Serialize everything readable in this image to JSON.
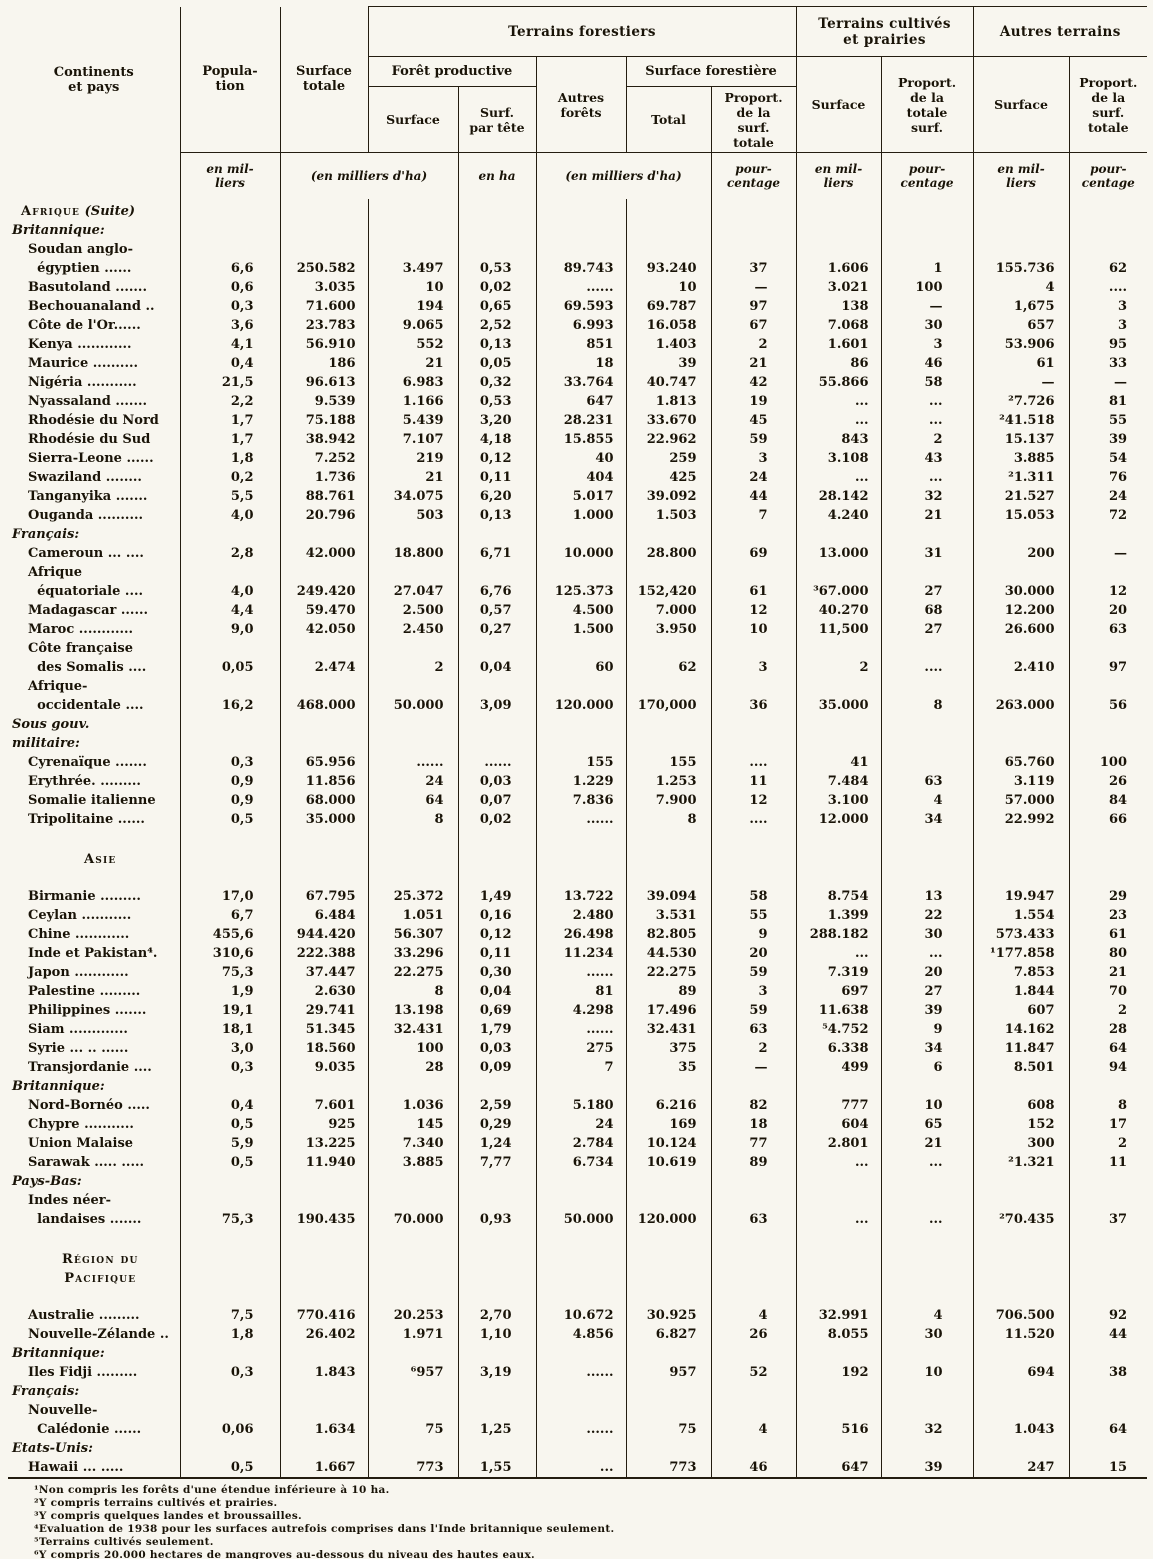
{
  "document": {
    "colors": {
      "paper": "#f8f6ef",
      "ink": "#191307"
    }
  },
  "header": {
    "col_continents": "Continents\net pays",
    "col_population": "Popula-\ntion",
    "col_surface_totale": "Surface\ntotale",
    "group_terrains_forestiers": "Terrains forestiers",
    "group_terrains_cultives": "Terrains cultivés\net prairies",
    "group_autres_terrains": "Autres terrains",
    "sub_foret_productive": "Forêt productive",
    "sub_surface_forestiere": "Surface forestière",
    "col_surface_fp": "Surface",
    "col_surf_par_tete": "Surf.\npar tête",
    "col_autres_forets": "Autres\nforêts",
    "col_total": "Total",
    "col_proport_surf_totale_1": "Proport.\nde la\nsurf.\ntotale",
    "col_surface_tc": "Surface",
    "col_proport_totale_surf": "Proport.\nde la\ntotale\nsurf.",
    "col_surface_at": "Surface",
    "col_proport_surf_totale_2": "Proport.\nde la\nsurf.\ntotale",
    "units": {
      "population": "en mil-\nliers",
      "milliers_ha_1": "(en milliers d'ha)",
      "en_ha": "en ha",
      "milliers_ha_2": "(en milliers d'ha)",
      "pourcentage_1": "pour-\ncentage",
      "en_milliers_1": "en mil-\nliers",
      "pourcentage_2": "pour-\ncentage",
      "en_milliers_2": "en mil-\nliers",
      "pourcentage_3": "pour-\ncentage"
    }
  },
  "table": {
    "columns": [
      "population",
      "surface-totale",
      "surface-productive",
      "surface-par-tete",
      "autres-forets",
      "total-forestiere",
      "proportion-forestiere",
      "surface-cultivee",
      "proportion-cultivee",
      "surface-autres-terrains",
      "proportion-autres-terrains"
    ],
    "rows": [
      {
        "t": "section",
        "label": "Afrique",
        "suffix": "(Suite)",
        "align": "left"
      },
      {
        "t": "group",
        "label": "Britannique:"
      },
      {
        "t": "d",
        "label": "Soudan anglo-\n  égyptien ......",
        "cells": [
          "6,6",
          "250.582",
          "3.497",
          "0,53",
          "89.743",
          "93.240",
          "37",
          "1.606",
          "1",
          "155.736",
          "62"
        ]
      },
      {
        "t": "d",
        "label": "Basutoland .......",
        "cells": [
          "0,6",
          "3.035",
          "10",
          "0,02",
          "......",
          "10",
          "—",
          "3.021",
          "100",
          "4",
          "...."
        ]
      },
      {
        "t": "d",
        "label": "Bechouanaland ..",
        "cells": [
          "0,3",
          "71.600",
          "194",
          "0,65",
          "69.593",
          "69.787",
          "97",
          "138",
          "—",
          "1,675",
          "3"
        ]
      },
      {
        "t": "d",
        "label": "Côte de l'Or......",
        "cells": [
          "3,6",
          "23.783",
          "9.065",
          "2,52",
          "6.993",
          "16.058",
          "67",
          "7.068",
          "30",
          "657",
          "3"
        ]
      },
      {
        "t": "d",
        "label": "Kenya ............",
        "cells": [
          "4,1",
          "56.910",
          "552",
          "0,13",
          "851",
          "1.403",
          "2",
          "1.601",
          "3",
          "53.906",
          "95"
        ]
      },
      {
        "t": "d",
        "label": "Maurice ..........",
        "cells": [
          "0,4",
          "186",
          "21",
          "0,05",
          "18",
          "39",
          "21",
          "86",
          "46",
          "61",
          "33"
        ]
      },
      {
        "t": "d",
        "label": "Nigéria ...........",
        "cells": [
          "21,5",
          "96.613",
          "6.983",
          "0,32",
          "33.764",
          "40.747",
          "42",
          "55.866",
          "58",
          "—",
          "—"
        ]
      },
      {
        "t": "d",
        "label": "Nyassaland .......",
        "cells": [
          "2,2",
          "9.539",
          "1.166",
          "0,53",
          "647",
          "1.813",
          "19",
          "...",
          "...",
          "²7.726",
          "81"
        ]
      },
      {
        "t": "d",
        "label": "Rhodésie du Nord",
        "cells": [
          "1,7",
          "75.188",
          "5.439",
          "3,20",
          "28.231",
          "33.670",
          "45",
          "...",
          "...",
          "²41.518",
          "55"
        ]
      },
      {
        "t": "d",
        "label": "Rhodésie du Sud",
        "cells": [
          "1,7",
          "38.942",
          "7.107",
          "4,18",
          "15.855",
          "22.962",
          "59",
          "843",
          "2",
          "15.137",
          "39"
        ]
      },
      {
        "t": "d",
        "label": "Sierra-Leone ......",
        "cells": [
          "1,8",
          "7.252",
          "219",
          "0,12",
          "40",
          "259",
          "3",
          "3.108",
          "43",
          "3.885",
          "54"
        ]
      },
      {
        "t": "d",
        "label": "Swaziland ........",
        "cells": [
          "0,2",
          "1.736",
          "21",
          "0,11",
          "404",
          "425",
          "24",
          "...",
          "...",
          "²1.311",
          "76"
        ]
      },
      {
        "t": "d",
        "label": "Tanganyika .......",
        "cells": [
          "5,5",
          "88.761",
          "34.075",
          "6,20",
          "5.017",
          "39.092",
          "44",
          "28.142",
          "32",
          "21.527",
          "24"
        ]
      },
      {
        "t": "d",
        "label": "Ouganda ..........",
        "cells": [
          "4,0",
          "20.796",
          "503",
          "0,13",
          "1.000",
          "1.503",
          "7",
          "4.240",
          "21",
          "15.053",
          "72"
        ]
      },
      {
        "t": "group",
        "label": "Français:"
      },
      {
        "t": "d",
        "label": "Cameroun ... ....",
        "cells": [
          "2,8",
          "42.000",
          "18.800",
          "6,71",
          "10.000",
          "28.800",
          "69",
          "13.000",
          "31",
          "200",
          "—"
        ]
      },
      {
        "t": "d",
        "label": "Afrique\n  équatoriale ....",
        "cells": [
          "4,0",
          "249.420",
          "27.047",
          "6,76",
          "125.373",
          "152,420",
          "61",
          "³67.000",
          "27",
          "30.000",
          "12"
        ]
      },
      {
        "t": "d",
        "label": "Madagascar ......",
        "cells": [
          "4,4",
          "59.470",
          "2.500",
          "0,57",
          "4.500",
          "7.000",
          "12",
          "40.270",
          "68",
          "12.200",
          "20"
        ]
      },
      {
        "t": "d",
        "label": "Maroc ............",
        "cells": [
          "9,0",
          "42.050",
          "2.450",
          "0,27",
          "1.500",
          "3.950",
          "10",
          "11,500",
          "27",
          "26.600",
          "63"
        ]
      },
      {
        "t": "d",
        "label": "Côte française\n  des Somalis ....",
        "cells": [
          "0,05",
          "2.474",
          "2",
          "0,04",
          "60",
          "62",
          "3",
          "2",
          "....",
          "2.410",
          "97"
        ]
      },
      {
        "t": "d",
        "label": "Afrique-\n  occidentale ....",
        "cells": [
          "16,2",
          "468.000",
          "50.000",
          "3,09",
          "120.000",
          "170,000",
          "36",
          "35.000",
          "8",
          "263.000",
          "56"
        ]
      },
      {
        "t": "group",
        "label": "Sous gouv.\nmilitaire:"
      },
      {
        "t": "d",
        "label": "Cyrenaïque .......",
        "cells": [
          "0,3",
          "65.956",
          "......",
          "......",
          "155",
          "155",
          "....",
          "41",
          "",
          "65.760",
          "100"
        ]
      },
      {
        "t": "d",
        "label": "Erythrée. .........",
        "cells": [
          "0,9",
          "11.856",
          "24",
          "0,03",
          "1.229",
          "1.253",
          "11",
          "7.484",
          "63",
          "3.119",
          "26"
        ]
      },
      {
        "t": "d",
        "label": "Somalie italienne",
        "cells": [
          "0,9",
          "68.000",
          "64",
          "0,07",
          "7.836",
          "7.900",
          "12",
          "3.100",
          "4",
          "57.000",
          "84"
        ]
      },
      {
        "t": "d",
        "label": "Tripolitaine ......",
        "cells": [
          "0,5",
          "35.000",
          "8",
          "0,02",
          "......",
          "8",
          "....",
          "12.000",
          "34",
          "22.992",
          "66"
        ]
      },
      {
        "t": "blank"
      },
      {
        "t": "section",
        "label": "Asie",
        "align": "center"
      },
      {
        "t": "blank"
      },
      {
        "t": "d",
        "label": "Birmanie .........",
        "cells": [
          "17,0",
          "67.795",
          "25.372",
          "1,49",
          "13.722",
          "39.094",
          "58",
          "8.754",
          "13",
          "19.947",
          "29"
        ]
      },
      {
        "t": "d",
        "label": "Ceylan ...........",
        "cells": [
          "6,7",
          "6.484",
          "1.051",
          "0,16",
          "2.480",
          "3.531",
          "55",
          "1.399",
          "22",
          "1.554",
          "23"
        ]
      },
      {
        "t": "d",
        "label": "Chine ............",
        "cells": [
          "455,6",
          "944.420",
          "56.307",
          "0,12",
          "26.498",
          "82.805",
          "9",
          "288.182",
          "30",
          "573.433",
          "61"
        ]
      },
      {
        "t": "d",
        "label": "Inde et Pakistan⁴.",
        "cells": [
          "310,6",
          "222.388",
          "33.296",
          "0,11",
          "11.234",
          "44.530",
          "20",
          "...",
          "...",
          "¹177.858",
          "80"
        ]
      },
      {
        "t": "d",
        "label": "Japon ............",
        "cells": [
          "75,3",
          "37.447",
          "22.275",
          "0,30",
          "......",
          "22.275",
          "59",
          "7.319",
          "20",
          "7.853",
          "21"
        ]
      },
      {
        "t": "d",
        "label": "Palestine .........",
        "cells": [
          "1,9",
          "2.630",
          "8",
          "0,04",
          "81",
          "89",
          "3",
          "697",
          "27",
          "1.844",
          "70"
        ]
      },
      {
        "t": "d",
        "label": "Philippines .......",
        "cells": [
          "19,1",
          "29.741",
          "13.198",
          "0,69",
          "4.298",
          "17.496",
          "59",
          "11.638",
          "39",
          "607",
          "2"
        ]
      },
      {
        "t": "d",
        "label": "Siam .............",
        "cells": [
          "18,1",
          "51.345",
          "32.431",
          "1,79",
          "......",
          "32.431",
          "63",
          "⁵4.752",
          "9",
          "14.162",
          "28"
        ]
      },
      {
        "t": "d",
        "label": "Syrie ... .. ......",
        "cells": [
          "3,0",
          "18.560",
          "100",
          "0,03",
          "275",
          "375",
          "2",
          "6.338",
          "34",
          "11.847",
          "64"
        ]
      },
      {
        "t": "d",
        "label": "Transjordanie ....",
        "cells": [
          "0,3",
          "9.035",
          "28",
          "0,09",
          "7",
          "35",
          "—",
          "499",
          "6",
          "8.501",
          "94"
        ]
      },
      {
        "t": "group",
        "label": "Britannique:"
      },
      {
        "t": "d",
        "label": "Nord-Bornéo .....",
        "cells": [
          "0,4",
          "7.601",
          "1.036",
          "2,59",
          "5.180",
          "6.216",
          "82",
          "777",
          "10",
          "608",
          "8"
        ]
      },
      {
        "t": "d",
        "label": "Chypre ...........",
        "cells": [
          "0,5",
          "925",
          "145",
          "0,29",
          "24",
          "169",
          "18",
          "604",
          "65",
          "152",
          "17"
        ]
      },
      {
        "t": "d",
        "label": "Union Malaise",
        "cells": [
          "5,9",
          "13.225",
          "7.340",
          "1,24",
          "2.784",
          "10.124",
          "77",
          "2.801",
          "21",
          "300",
          "2"
        ]
      },
      {
        "t": "d",
        "label": "Sarawak ..... .....",
        "cells": [
          "0,5",
          "11.940",
          "3.885",
          "7,77",
          "6.734",
          "10.619",
          "89",
          "...",
          "...",
          "²1.321",
          "11"
        ]
      },
      {
        "t": "group",
        "label": "Pays-Bas:"
      },
      {
        "t": "d",
        "label": "Indes néer-\n  landaises .......",
        "cells": [
          "75,3",
          "190.435",
          "70.000",
          "0,93",
          "50.000",
          "120.000",
          "63",
          "...",
          "...",
          "²70.435",
          "37"
        ]
      },
      {
        "t": "blank"
      },
      {
        "t": "section",
        "label": "Région du\nPacifique",
        "align": "center"
      },
      {
        "t": "blank"
      },
      {
        "t": "d",
        "label": "Australie .........",
        "cells": [
          "7,5",
          "770.416",
          "20.253",
          "2,70",
          "10.672",
          "30.925",
          "4",
          "32.991",
          "4",
          "706.500",
          "92"
        ]
      },
      {
        "t": "d",
        "label": "Nouvelle-Zélande ..",
        "cells": [
          "1,8",
          "26.402",
          "1.971",
          "1,10",
          "4.856",
          "6.827",
          "26",
          "8.055",
          "30",
          "11.520",
          "44"
        ]
      },
      {
        "t": "group",
        "label": "Britannique:"
      },
      {
        "t": "d",
        "label": "Iles Fidji .........",
        "cells": [
          "0,3",
          "1.843",
          "⁶957",
          "3,19",
          "......",
          "957",
          "52",
          "192",
          "10",
          "694",
          "38"
        ]
      },
      {
        "t": "group",
        "label": "Français:"
      },
      {
        "t": "d",
        "label": "Nouvelle-\n  Calédonie ......",
        "cells": [
          "0,06",
          "1.634",
          "75",
          "1,25",
          "......",
          "75",
          "4",
          "516",
          "32",
          "1.043",
          "64"
        ]
      },
      {
        "t": "group",
        "label": "Etats-Unis:"
      },
      {
        "t": "d",
        "label": "Hawaii ... .....",
        "cells": [
          "0,5",
          "1.667",
          "773",
          "1,55",
          "...",
          "773",
          "46",
          "647",
          "39",
          "247",
          "15"
        ]
      }
    ]
  },
  "footnotes": [
    "¹Non compris les forêts d'une étendue inférieure à 10 ha.",
    "²Y compris terrains cultivés et prairies.",
    "³Y compris quelques landes et broussailles.",
    "⁴Evaluation de 1938 pour les surfaces autrefois comprises dans l'Inde britannique seulement.",
    "⁵Terrains cultivés seulement.",
    "⁶Y compris 20.000 hectares de mangroves au-dessous du niveau des hautes eaux."
  ]
}
